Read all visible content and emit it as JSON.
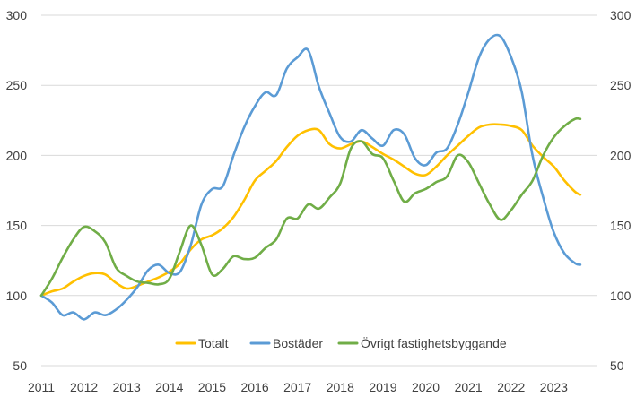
{
  "chart_data": {
    "type": "line",
    "title": "",
    "xlabel": "",
    "ylabel": "",
    "ylim": [
      50,
      300
    ],
    "xlim": [
      2011,
      2024
    ],
    "y_ticks": [
      50,
      100,
      150,
      200,
      250,
      300
    ],
    "y_tick_labels": [
      "50",
      "100",
      "150",
      "200",
      "250",
      "300"
    ],
    "x_ticks": [
      2011,
      2012,
      2013,
      2014,
      2015,
      2016,
      2017,
      2018,
      2019,
      2020,
      2021,
      2022,
      2023
    ],
    "x_tick_labels": [
      "2011",
      "2012",
      "2013",
      "2014",
      "2015",
      "2016",
      "2017",
      "2018",
      "2019",
      "2020",
      "2021",
      "2022",
      "2023"
    ],
    "grid": "horizontal",
    "legend_position": "bottom",
    "series": [
      {
        "name": "Totalt",
        "color": "#FFC000",
        "x": [
          2011.0,
          2011.25,
          2011.5,
          2011.75,
          2012.0,
          2012.25,
          2012.5,
          2012.75,
          2013.0,
          2013.25,
          2013.5,
          2013.75,
          2014.0,
          2014.25,
          2014.5,
          2014.75,
          2015.0,
          2015.25,
          2015.5,
          2015.75,
          2016.0,
          2016.25,
          2016.5,
          2016.75,
          2017.0,
          2017.25,
          2017.5,
          2017.75,
          2018.0,
          2018.25,
          2018.5,
          2018.75,
          2019.0,
          2019.25,
          2019.5,
          2019.75,
          2020.0,
          2020.25,
          2020.5,
          2020.75,
          2021.0,
          2021.25,
          2021.5,
          2021.75,
          2022.0,
          2022.25,
          2022.5,
          2022.75,
          2023.0,
          2023.25,
          2023.5,
          2023.62
        ],
        "y": [
          100,
          103,
          105,
          110,
          114,
          116,
          115,
          109,
          105,
          107,
          110,
          113,
          117,
          123,
          133,
          140,
          143,
          148,
          156,
          168,
          182,
          189,
          196,
          206,
          214,
          218,
          218,
          208,
          205,
          208,
          210,
          206,
          201,
          197,
          192,
          187,
          186,
          192,
          200,
          207,
          214,
          220,
          222,
          222,
          221,
          218,
          207,
          199,
          192,
          182,
          174,
          172
        ]
      },
      {
        "name": "Bostäder",
        "color": "#5B9BD5",
        "x": [
          2011.0,
          2011.25,
          2011.5,
          2011.75,
          2012.0,
          2012.25,
          2012.5,
          2012.75,
          2013.0,
          2013.25,
          2013.5,
          2013.75,
          2014.0,
          2014.25,
          2014.5,
          2014.75,
          2015.0,
          2015.25,
          2015.5,
          2015.75,
          2016.0,
          2016.25,
          2016.5,
          2016.75,
          2017.0,
          2017.25,
          2017.5,
          2017.75,
          2018.0,
          2018.25,
          2018.5,
          2018.75,
          2019.0,
          2019.25,
          2019.5,
          2019.75,
          2020.0,
          2020.25,
          2020.5,
          2020.75,
          2021.0,
          2021.25,
          2021.5,
          2021.75,
          2022.0,
          2022.25,
          2022.5,
          2022.75,
          2023.0,
          2023.25,
          2023.5,
          2023.62
        ],
        "y": [
          100,
          95,
          86,
          88,
          83,
          88,
          86,
          90,
          97,
          106,
          118,
          122,
          116,
          117,
          136,
          165,
          176,
          178,
          200,
          220,
          235,
          245,
          243,
          262,
          270,
          275,
          249,
          230,
          213,
          210,
          218,
          212,
          207,
          218,
          215,
          198,
          193,
          202,
          205,
          222,
          245,
          270,
          283,
          285,
          270,
          245,
          200,
          170,
          145,
          130,
          123,
          122
        ]
      },
      {
        "name": "Övrigt fastighetsbyggande",
        "color": "#70AD47",
        "x": [
          2011.0,
          2011.25,
          2011.5,
          2011.75,
          2012.0,
          2012.25,
          2012.5,
          2012.75,
          2013.0,
          2013.25,
          2013.5,
          2013.75,
          2014.0,
          2014.25,
          2014.5,
          2014.75,
          2015.0,
          2015.25,
          2015.5,
          2015.75,
          2016.0,
          2016.25,
          2016.5,
          2016.75,
          2017.0,
          2017.25,
          2017.5,
          2017.75,
          2018.0,
          2018.25,
          2018.5,
          2018.75,
          2019.0,
          2019.25,
          2019.5,
          2019.75,
          2020.0,
          2020.25,
          2020.5,
          2020.75,
          2021.0,
          2021.25,
          2021.5,
          2021.75,
          2022.0,
          2022.25,
          2022.5,
          2022.75,
          2023.0,
          2023.25,
          2023.5,
          2023.62
        ],
        "y": [
          100,
          112,
          127,
          140,
          149,
          146,
          138,
          120,
          114,
          110,
          109,
          108,
          112,
          132,
          150,
          136,
          115,
          119,
          128,
          126,
          127,
          134,
          140,
          155,
          155,
          165,
          162,
          170,
          180,
          205,
          210,
          201,
          198,
          182,
          167,
          173,
          176,
          181,
          185,
          200,
          195,
          180,
          165,
          154,
          161,
          172,
          182,
          200,
          213,
          221,
          226,
          226
        ]
      }
    ]
  }
}
